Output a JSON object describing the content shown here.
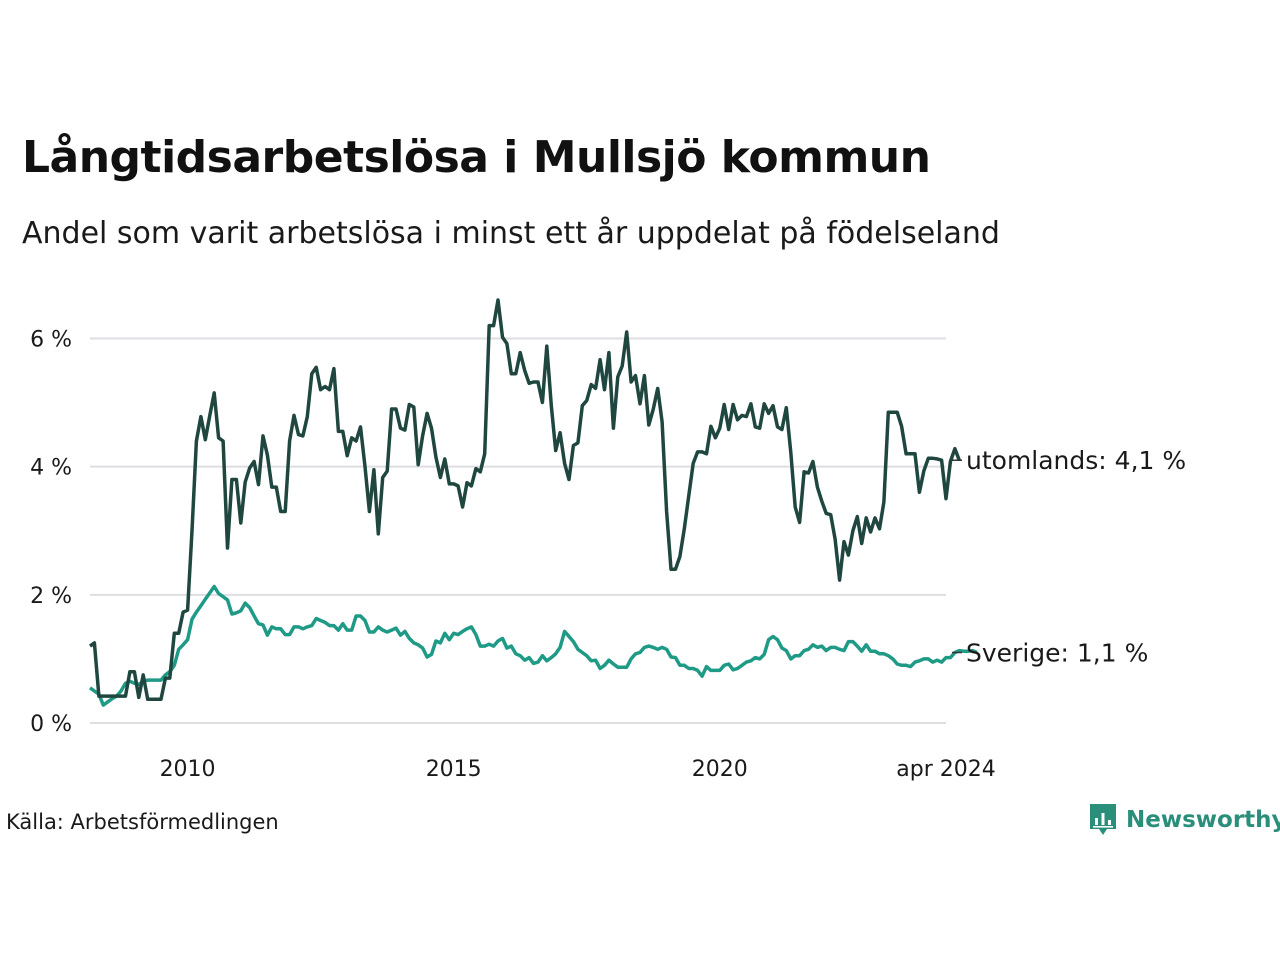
{
  "title": "Långtidsarbetslösa i Mullsjö kommun",
  "subtitle": "Andel som varit arbetslösa i minst ett år uppdelat på födelseland",
  "source": "Källa: Arbetsförmedlingen",
  "brand": {
    "name": "Newsworthy",
    "icon": "newsworthy-logo-icon",
    "color": "#2a8f7a"
  },
  "chart_data": {
    "type": "line",
    "title": "Långtidsarbetslösa i Mullsjö kommun",
    "xlabel": "",
    "ylabel": "",
    "x_start": 2008.1667,
    "x_step": 0.0833333,
    "xlim": [
      2008.1667,
      2024.25
    ],
    "ylim": [
      0,
      6.6
    ],
    "y_ticks": [
      0,
      2,
      4,
      6
    ],
    "y_tick_labels": [
      "0 %",
      "2 %",
      "4 %",
      "6 %"
    ],
    "x_ticks": [
      2010,
      2015,
      2020,
      2024.25
    ],
    "x_tick_labels": [
      "2010",
      "2015",
      "2020",
      "apr 2024"
    ],
    "grid": "horizontal",
    "series": [
      {
        "name": "utomlands",
        "label": "utomlands: 4,1 %",
        "color": "#1f4740",
        "values": [
          1.2,
          1.25,
          0.42,
          0.42,
          0.42,
          0.42,
          0.42,
          0.42,
          0.42,
          0.8,
          0.8,
          0.4,
          0.75,
          0.37,
          0.37,
          0.37,
          0.37,
          0.7,
          0.7,
          1.4,
          1.4,
          1.73,
          1.76,
          3.0,
          4.4,
          4.78,
          4.42,
          4.8,
          5.15,
          4.45,
          4.4,
          2.73,
          3.8,
          3.8,
          3.12,
          3.76,
          3.98,
          4.08,
          3.72,
          4.48,
          4.18,
          3.68,
          3.68,
          3.3,
          3.3,
          4.4,
          4.8,
          4.5,
          4.48,
          4.78,
          5.45,
          5.55,
          5.2,
          5.25,
          5.2,
          5.53,
          4.55,
          4.55,
          4.17,
          4.45,
          4.4,
          4.62,
          4.0,
          3.3,
          3.95,
          2.95,
          3.83,
          3.93,
          4.9,
          4.9,
          4.6,
          4.57,
          4.97,
          4.93,
          4.03,
          4.48,
          4.83,
          4.6,
          4.15,
          3.83,
          4.12,
          3.73,
          3.73,
          3.7,
          3.37,
          3.75,
          3.7,
          3.97,
          3.92,
          4.2,
          6.2,
          6.2,
          6.6,
          6.02,
          5.92,
          5.45,
          5.45,
          5.78,
          5.5,
          5.3,
          5.32,
          5.32,
          5.0,
          5.88,
          4.95,
          4.25,
          4.53,
          4.05,
          3.8,
          4.33,
          4.37,
          4.95,
          5.03,
          5.28,
          5.22,
          5.67,
          5.2,
          5.78,
          4.6,
          5.4,
          5.57,
          6.1,
          5.32,
          5.42,
          4.98,
          5.42,
          4.65,
          4.9,
          5.22,
          4.7,
          3.3,
          2.4,
          2.4,
          2.6,
          3.03,
          3.55,
          4.05,
          4.23,
          4.23,
          4.2,
          4.63,
          4.45,
          4.6,
          4.97,
          4.58,
          4.97,
          4.73,
          4.8,
          4.78,
          4.98,
          4.62,
          4.6,
          4.98,
          4.83,
          4.95,
          4.62,
          4.58,
          4.92,
          4.22,
          3.37,
          3.13,
          3.92,
          3.9,
          4.08,
          3.68,
          3.46,
          3.27,
          3.25,
          2.87,
          2.23,
          2.83,
          2.62,
          3.0,
          3.22,
          2.8,
          3.2,
          2.98,
          3.2,
          3.03,
          3.45,
          4.85,
          4.85,
          4.85,
          4.63,
          4.2,
          4.2,
          4.2,
          3.6,
          3.93,
          4.13,
          4.13,
          4.12,
          4.1,
          3.5,
          4.08,
          4.28,
          4.1
        ]
      },
      {
        "name": "Sverige",
        "label": "Sverige: 1,1 %",
        "color": "#1e9a86",
        "values": [
          0.55,
          0.5,
          0.45,
          0.28,
          0.33,
          0.38,
          0.42,
          0.5,
          0.62,
          0.65,
          0.62,
          0.6,
          0.65,
          0.67,
          0.67,
          0.67,
          0.67,
          0.75,
          0.8,
          0.9,
          1.15,
          1.22,
          1.3,
          1.62,
          1.73,
          1.83,
          1.93,
          2.03,
          2.13,
          2.02,
          1.97,
          1.92,
          1.7,
          1.72,
          1.75,
          1.87,
          1.8,
          1.67,
          1.55,
          1.53,
          1.37,
          1.5,
          1.47,
          1.47,
          1.38,
          1.38,
          1.5,
          1.5,
          1.47,
          1.5,
          1.52,
          1.63,
          1.6,
          1.57,
          1.52,
          1.52,
          1.45,
          1.55,
          1.45,
          1.45,
          1.67,
          1.67,
          1.6,
          1.42,
          1.42,
          1.5,
          1.45,
          1.42,
          1.45,
          1.48,
          1.37,
          1.43,
          1.32,
          1.25,
          1.22,
          1.17,
          1.03,
          1.07,
          1.28,
          1.25,
          1.4,
          1.3,
          1.4,
          1.38,
          1.43,
          1.47,
          1.5,
          1.38,
          1.2,
          1.2,
          1.23,
          1.2,
          1.28,
          1.32,
          1.17,
          1.2,
          1.08,
          1.05,
          0.98,
          1.02,
          0.93,
          0.95,
          1.05,
          0.97,
          1.02,
          1.08,
          1.18,
          1.43,
          1.35,
          1.27,
          1.15,
          1.1,
          1.05,
          0.97,
          0.98,
          0.85,
          0.9,
          0.98,
          0.92,
          0.87,
          0.87,
          0.87,
          1.0,
          1.08,
          1.1,
          1.18,
          1.2,
          1.18,
          1.15,
          1.18,
          1.15,
          1.03,
          1.02,
          0.9,
          0.9,
          0.85,
          0.85,
          0.82,
          0.73,
          0.88,
          0.82,
          0.82,
          0.82,
          0.9,
          0.92,
          0.83,
          0.85,
          0.9,
          0.95,
          0.97,
          1.02,
          1.0,
          1.07,
          1.3,
          1.35,
          1.3,
          1.17,
          1.13,
          1.0,
          1.05,
          1.05,
          1.13,
          1.15,
          1.22,
          1.18,
          1.2,
          1.13,
          1.18,
          1.18,
          1.15,
          1.13,
          1.27,
          1.27,
          1.2,
          1.12,
          1.22,
          1.12,
          1.12,
          1.08,
          1.08,
          1.05,
          1.0,
          0.92,
          0.9,
          0.9,
          0.88,
          0.95,
          0.97,
          1.0,
          1.0,
          0.95,
          0.98,
          0.95,
          1.02,
          1.02,
          1.1,
          1.13,
          1.12,
          1.12,
          1.13,
          1.1
        ]
      }
    ]
  }
}
